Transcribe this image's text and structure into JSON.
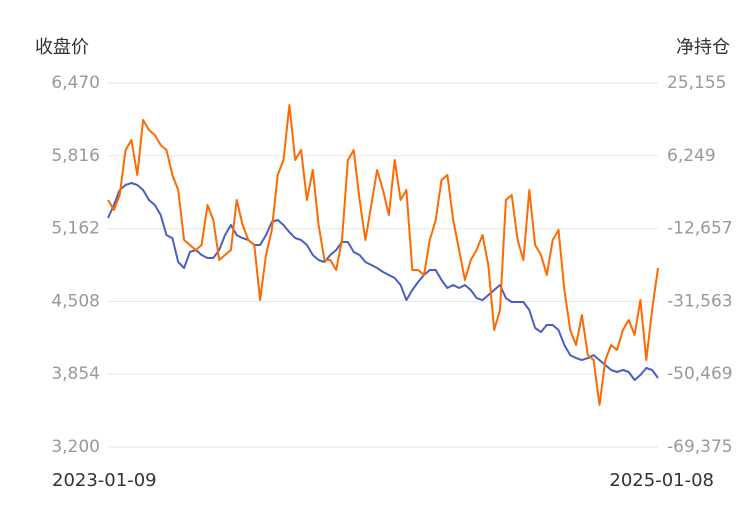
{
  "chart_data": {
    "type": "line",
    "y_label": "收盘价",
    "y2_label": "净持仓",
    "categories": [
      "2023-01-09",
      null,
      null,
      null,
      null,
      null,
      null,
      null,
      null,
      null,
      null,
      null,
      null,
      null,
      null,
      null,
      null,
      null,
      null,
      null,
      null,
      null,
      null,
      null,
      null,
      null,
      null,
      null,
      null,
      null,
      null,
      null,
      null,
      null,
      null,
      null,
      null,
      null,
      null,
      null,
      null,
      null,
      null,
      null,
      null,
      null,
      null,
      null,
      null,
      null,
      null,
      null,
      null,
      null,
      null,
      null,
      null,
      null,
      null,
      null,
      null,
      null,
      null,
      null,
      null,
      null,
      null,
      null,
      null,
      null,
      null,
      null,
      null,
      null,
      null,
      null,
      null,
      null,
      null,
      null,
      null,
      null,
      null,
      null,
      null,
      null,
      null,
      null,
      null,
      null,
      null,
      null,
      null,
      null,
      "2025-01-08"
    ],
    "series": [
      {
        "name": "收盘价",
        "color": "#4a5fc1",
        "axis": "y",
        "values": [
          5257,
          5374,
          5509,
          5554,
          5572,
          5554,
          5509,
          5419,
          5374,
          5284,
          5104,
          5077,
          4862,
          4808,
          4952,
          4970,
          4925,
          4898,
          4898,
          4970,
          5104,
          5194,
          5104,
          5077,
          5060,
          5015,
          5015,
          5104,
          5221,
          5239,
          5194,
          5131,
          5077,
          5060,
          5015,
          4925,
          4880,
          4862,
          4925,
          4970,
          5042,
          5042,
          4952,
          4925,
          4862,
          4835,
          4808,
          4772,
          4745,
          4718,
          4655,
          4520,
          4610,
          4682,
          4745,
          4790,
          4790,
          4700,
          4628,
          4655,
          4628,
          4655,
          4610,
          4538,
          4520,
          4565,
          4610,
          4655,
          4538,
          4503,
          4503,
          4503,
          4431,
          4269,
          4233,
          4296,
          4296,
          4251,
          4116,
          4026,
          3999,
          3981,
          3999,
          4026,
          3981,
          3937,
          3892,
          3874,
          3892,
          3874,
          3802,
          3847,
          3910,
          3892,
          3820
        ]
      },
      {
        "name": "净持仓",
        "color": "#ff6a00",
        "axis": "y2",
        "values": [
          -5230,
          -7827,
          -3931,
          7755,
          10352,
          1263,
          15546,
          12949,
          11651,
          9054,
          7755,
          1263,
          -2633,
          -15618,
          -16916,
          -18215,
          -16916,
          -6528,
          -10424,
          -20812,
          -19513,
          -18215,
          -5230,
          -11722,
          -15618,
          -16916,
          -31200,
          -19513,
          -13021,
          1263,
          5158,
          19442,
          5158,
          7755,
          -5230,
          2561,
          -11722,
          -20812,
          -20812,
          -23409,
          -15618,
          5158,
          7755,
          -5230,
          -15618,
          -6528,
          2561,
          -2633,
          -9125,
          5158,
          -5230,
          -2633,
          -23409,
          -23409,
          -24707,
          -15618,
          -10424,
          -36,
          1263,
          -10424,
          -18215,
          -26006,
          -20812,
          -18215,
          -14319,
          -22110,
          -38992,
          -33797,
          -5230,
          -3931,
          -15618,
          -20812,
          -2633,
          -16916,
          -19513,
          -24707,
          -15618,
          -13021,
          -28602,
          -38992,
          -42886,
          -35095,
          -45483,
          -46782,
          -58468,
          -46782,
          -42886,
          -44185,
          -38992,
          -36394,
          -40291,
          -31200,
          -46782,
          -33797,
          -22888
        ]
      }
    ],
    "ylim": [
      3200,
      6470
    ],
    "yticks": [
      {
        "value": 3200,
        "label": "3,200"
      },
      {
        "value": 3854,
        "label": "3,854"
      },
      {
        "value": 4508,
        "label": "4,508"
      },
      {
        "value": 5162,
        "label": "5,162"
      },
      {
        "value": 5816,
        "label": "5,816"
      },
      {
        "value": 6470,
        "label": "6,470"
      }
    ],
    "y2lim": [
      -69375,
      25155
    ],
    "y2ticks": [
      {
        "value": -69375,
        "label": "-69,375"
      },
      {
        "value": -50469,
        "label": "-50,469"
      },
      {
        "value": -31563,
        "label": "-31,563"
      },
      {
        "value": -12657,
        "label": "-12,657"
      },
      {
        "value": 6249,
        "label": "6,249"
      },
      {
        "value": 25155,
        "label": "25,155"
      }
    ],
    "grid": true
  }
}
